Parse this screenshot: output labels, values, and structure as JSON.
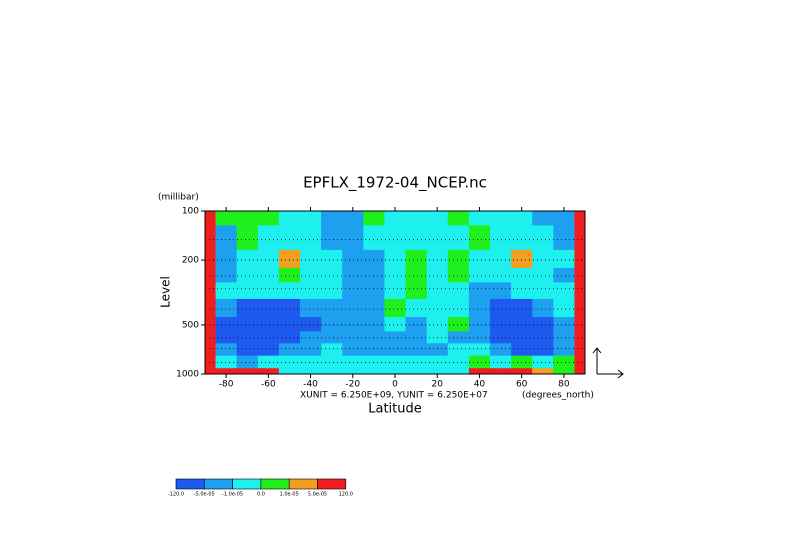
{
  "chart_data": {
    "type": "contour",
    "title": "EPFLX_1972-04_NCEP.nc",
    "x_label": "Latitude",
    "y_label": "Level",
    "y_unit": "(millibar)",
    "x_unit": "(degrees_north)",
    "annotation": "XUNIT = 6.250E+09, YUNIT = 6.250E+07",
    "xlim": [
      -90,
      90
    ],
    "ylim": [
      1000,
      100
    ],
    "y_log": true,
    "xticks": [
      -80,
      -60,
      -40,
      -20,
      0,
      20,
      40,
      60,
      80
    ],
    "yticks": [
      100,
      200,
      500,
      1000
    ],
    "x": [
      -90,
      -80,
      -70,
      -60,
      -50,
      -40,
      -30,
      -20,
      -10,
      0,
      10,
      20,
      30,
      40,
      50,
      60,
      70,
      80,
      90
    ],
    "y": [
      100,
      150,
      200,
      250,
      300,
      400,
      500,
      600,
      700,
      850,
      1000
    ],
    "levels": [
      {
        "value": -120,
        "label": "-120.0"
      },
      {
        "value": -5e-05,
        "label": "-5.0e-05"
      },
      {
        "value": -1e-05,
        "label": "-1.0e-05"
      },
      {
        "value": 0,
        "label": "0.0"
      },
      {
        "value": 1e-05,
        "label": "1.0e-05"
      },
      {
        "value": 5e-05,
        "label": "5.0e-05"
      },
      {
        "value": 120,
        "label": "120.0"
      }
    ],
    "colors": [
      "#1e5af0",
      "#1ea0f0",
      "#1ef0f0",
      "#1ef01e",
      "#f0a01e",
      "#f01e1e"
    ],
    "values": [
      [
        0.0002,
        5e-06,
        5e-06,
        5e-06,
        -5e-06,
        -5e-06,
        -3e-05,
        -3e-05,
        5e-06,
        -5e-06,
        -5e-06,
        -5e-06,
        5e-06,
        -5e-06,
        -5e-06,
        -5e-06,
        -3e-05,
        -3e-05,
        0.0002
      ],
      [
        0.0002,
        -3e-05,
        5e-06,
        -5e-06,
        -5e-06,
        -5e-06,
        -3e-05,
        -3e-05,
        -5e-06,
        -5e-06,
        -5e-06,
        -5e-06,
        -5e-06,
        5e-06,
        -5e-06,
        -5e-06,
        -5e-06,
        -3e-05,
        0.0002
      ],
      [
        0.0002,
        -3e-05,
        -5e-06,
        -5e-06,
        3e-05,
        -5e-06,
        -5e-06,
        -3e-05,
        -3e-05,
        -5e-06,
        5e-06,
        -5e-06,
        5e-06,
        -5e-06,
        -5e-06,
        3e-05,
        -5e-06,
        -5e-06,
        0.0002
      ],
      [
        0.0002,
        -3e-05,
        -5e-06,
        -5e-06,
        5e-06,
        -5e-06,
        -5e-06,
        -3e-05,
        -3e-05,
        -5e-06,
        5e-06,
        -5e-06,
        5e-06,
        -5e-06,
        -5e-06,
        -5e-06,
        -5e-06,
        -3e-05,
        0.0002
      ],
      [
        0.0002,
        -5e-06,
        -5e-06,
        -5e-06,
        -5e-06,
        -5e-06,
        -5e-06,
        -3e-05,
        -3e-05,
        -5e-06,
        5e-06,
        -5e-06,
        -5e-06,
        -3e-05,
        -3e-05,
        -5e-06,
        -5e-06,
        -5e-06,
        0.0002
      ],
      [
        0.0002,
        -3e-05,
        -0.0002,
        -0.0002,
        -0.0002,
        -3e-05,
        -3e-05,
        -3e-05,
        -3e-05,
        5e-06,
        -5e-06,
        -5e-06,
        -5e-06,
        -3e-05,
        -0.0002,
        -0.0002,
        -3e-05,
        -5e-06,
        0.0002
      ],
      [
        0.0002,
        -0.0002,
        -0.0002,
        -0.0002,
        -0.0002,
        -0.0002,
        -3e-05,
        -3e-05,
        -3e-05,
        -5e-06,
        -3e-05,
        -5e-06,
        5e-06,
        -3e-05,
        -0.0002,
        -0.0002,
        -0.0002,
        -3e-05,
        0.0002
      ],
      [
        0.0002,
        -0.0002,
        -0.0002,
        -0.0002,
        -0.0002,
        -3e-05,
        -3e-05,
        -3e-05,
        -3e-05,
        -3e-05,
        -3e-05,
        -5e-06,
        -3e-05,
        -3e-05,
        -0.0002,
        -0.0002,
        -0.0002,
        -3e-05,
        0.0002
      ],
      [
        0.0002,
        -3e-05,
        -0.0002,
        -0.0002,
        -3e-05,
        -3e-05,
        -5e-06,
        -3e-05,
        -3e-05,
        -3e-05,
        -3e-05,
        -3e-05,
        -5e-06,
        -5e-06,
        -3e-05,
        -0.0002,
        -0.0002,
        -3e-05,
        0.0002
      ],
      [
        0.0002,
        -5e-06,
        -3e-05,
        -5e-06,
        -5e-06,
        -5e-06,
        -5e-06,
        -5e-06,
        -5e-06,
        -5e-06,
        -5e-06,
        -5e-06,
        -5e-06,
        5e-06,
        -5e-06,
        5e-06,
        -5e-06,
        5e-06,
        0.0002
      ],
      [
        0.0002,
        0.0002,
        0.0002,
        0.0002,
        -5e-06,
        -5e-06,
        -5e-06,
        -5e-06,
        -5e-06,
        -5e-06,
        -5e-06,
        -5e-06,
        -5e-06,
        0.0002,
        0.0002,
        0.0002,
        3e-05,
        5e-06,
        0.0002
      ]
    ]
  }
}
